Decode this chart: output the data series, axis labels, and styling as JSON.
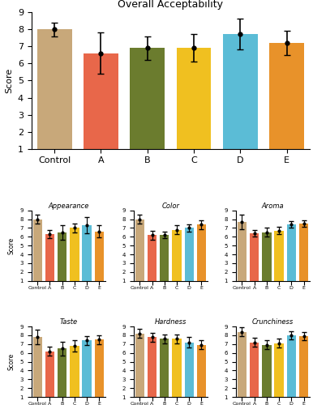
{
  "categories": [
    "Control",
    "A",
    "B",
    "C",
    "D",
    "E"
  ],
  "bar_colors": [
    "#c8a87a",
    "#e8674a",
    "#6b7c2e",
    "#f0c020",
    "#5bbcd6",
    "#e8922a"
  ],
  "overall": {
    "title": "Overall Acceptability",
    "values": [
      8.0,
      6.6,
      6.9,
      6.9,
      7.7,
      7.2
    ],
    "errors": [
      0.4,
      1.2,
      0.7,
      0.8,
      0.9,
      0.7
    ]
  },
  "subplots": [
    {
      "title": "Appearance",
      "values": [
        8.0,
        6.3,
        6.5,
        7.0,
        7.3,
        6.6
      ],
      "errors": [
        0.5,
        0.5,
        0.8,
        0.5,
        0.9,
        0.7
      ]
    },
    {
      "title": "Color",
      "values": [
        8.0,
        6.2,
        6.2,
        6.8,
        7.0,
        7.4
      ],
      "errors": [
        0.5,
        0.5,
        0.4,
        0.5,
        0.4,
        0.5
      ]
    },
    {
      "title": "Aroma",
      "values": [
        7.7,
        6.4,
        6.5,
        6.7,
        7.4,
        7.5
      ],
      "errors": [
        0.8,
        0.4,
        0.5,
        0.4,
        0.4,
        0.4
      ]
    },
    {
      "title": "Taste",
      "values": [
        7.8,
        6.2,
        6.5,
        6.8,
        7.4,
        7.5
      ],
      "errors": [
        0.8,
        0.5,
        0.8,
        0.6,
        0.5,
        0.5
      ]
    },
    {
      "title": "Hardness",
      "values": [
        8.2,
        7.8,
        7.6,
        7.6,
        7.2,
        6.9
      ],
      "errors": [
        0.5,
        0.5,
        0.5,
        0.5,
        0.6,
        0.5
      ]
    },
    {
      "title": "Crunchiness",
      "values": [
        8.4,
        7.2,
        6.9,
        7.1,
        8.0,
        7.9
      ],
      "errors": [
        0.5,
        0.5,
        0.5,
        0.5,
        0.5,
        0.5
      ]
    }
  ],
  "ylabel": "Score",
  "ylim": [
    1,
    9
  ],
  "yticks": [
    1,
    2,
    3,
    4,
    5,
    6,
    7,
    8,
    9
  ]
}
